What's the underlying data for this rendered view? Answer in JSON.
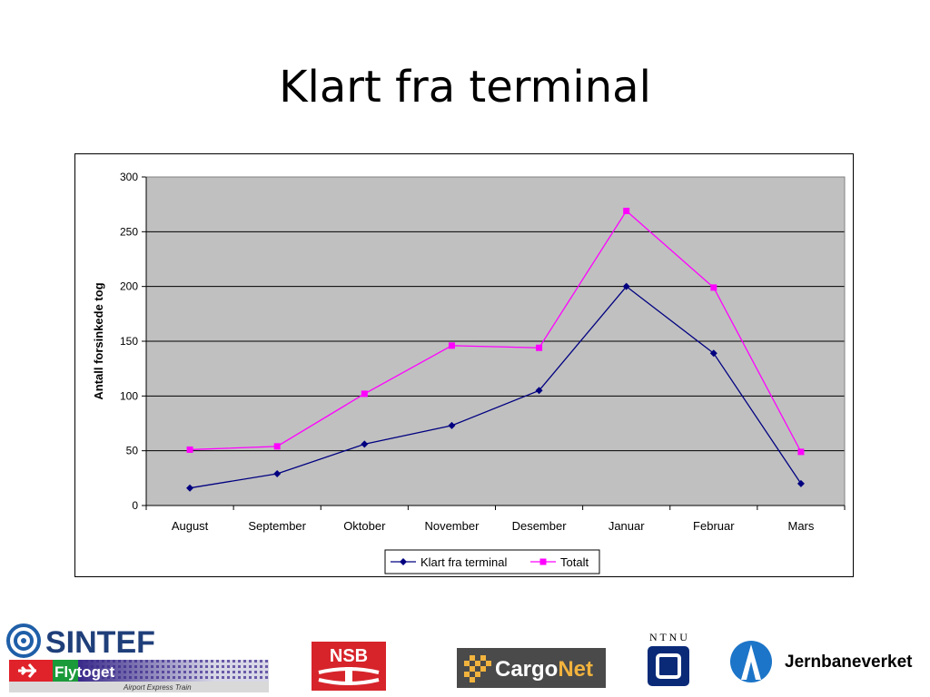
{
  "slide": {
    "title": "Klart fra terminal"
  },
  "chart_data": {
    "type": "line",
    "title": "",
    "xlabel": "",
    "ylabel": "Antall forsinkede tog",
    "categories": [
      "August",
      "September",
      "Oktober",
      "November",
      "Desember",
      "Januar",
      "Februar",
      "Mars"
    ],
    "ylim": [
      0,
      300
    ],
    "yticks": [
      0,
      50,
      100,
      150,
      200,
      250,
      300
    ],
    "grid": true,
    "legend_position": "bottom",
    "plot_background": "#c0c0c0",
    "series": [
      {
        "name": "Klart fra terminal",
        "color": "#000080",
        "marker": "diamond",
        "values": [
          16,
          29,
          56,
          73,
          105,
          200,
          139,
          20
        ]
      },
      {
        "name": "Totalt",
        "color": "#ff00ff",
        "marker": "square",
        "values": [
          51,
          54,
          102,
          146,
          144,
          269,
          199,
          49
        ]
      }
    ]
  },
  "logos": {
    "sintef": "SINTEF",
    "flytoget": "Flytoget",
    "flytoget_sub": "Airport Express Train",
    "nsb": "NSB",
    "cargonet_a": "Cargo",
    "cargonet_b": "Net",
    "ntnu": "N T N U",
    "jernbaneverket": "Jernbaneverket"
  }
}
